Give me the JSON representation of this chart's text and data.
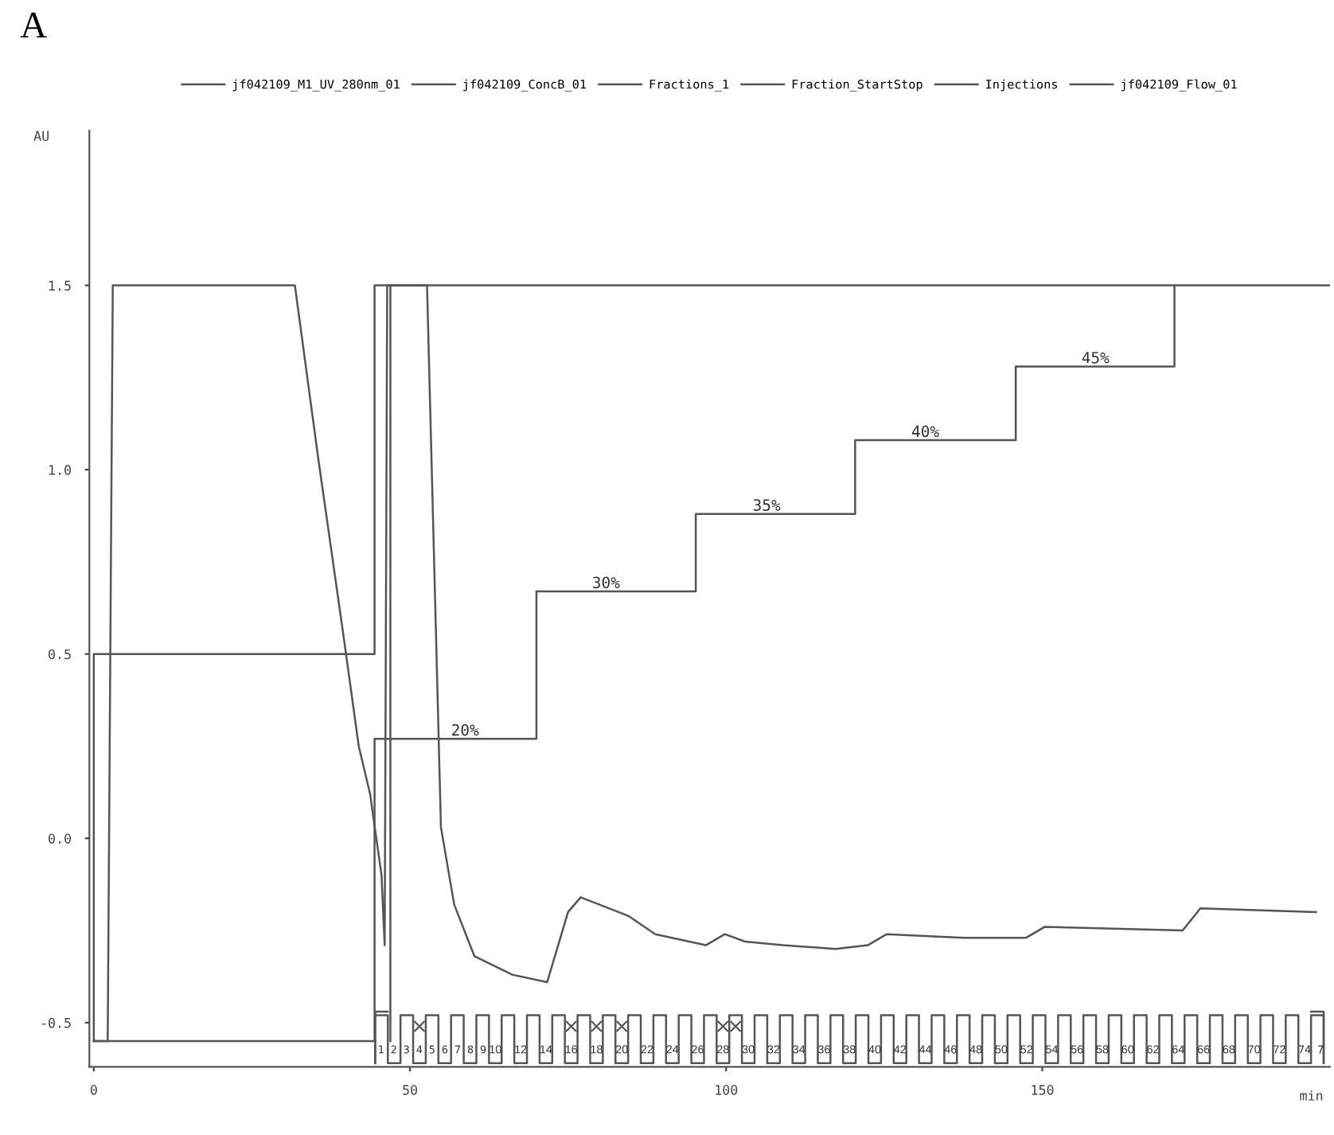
{
  "chart_data": {
    "type": "line",
    "title": "A",
    "ylabel": "AU",
    "xlabel": "min",
    "xlim": [
      -0.7,
      195.5
    ],
    "ylim": [
      -0.62,
      1.92
    ],
    "xticks": [
      0,
      50,
      100,
      150
    ],
    "yticks": [
      {
        "value": -0.5,
        "label": "-0.5"
      },
      {
        "value": 0,
        "label": "0.0"
      },
      {
        "value": 0.5,
        "label": "0.5"
      },
      {
        "value": 1,
        "label": "1.0"
      },
      {
        "value": 1.5,
        "label": "1.5"
      }
    ],
    "legend": "top",
    "grid": false,
    "series": [
      {
        "name": "jf042109_M1_UV_280nm_01",
        "color": "#555555",
        "x": [
          0,
          2.2,
          3,
          31.8,
          35.5,
          39.4,
          41.9,
          43.7,
          45.5,
          46,
          46.4,
          52.7,
          54.9,
          57,
          60.2,
          66.2,
          71.7,
          75,
          77,
          84.5,
          88.8,
          96.8,
          99.8,
          103,
          109,
          117.3,
          122.4,
          125.4,
          137.6,
          147.4,
          150.4,
          172.2,
          175,
          193.3
        ],
        "values": [
          -0.55,
          -0.55,
          1.5,
          1.5,
          1.03,
          0.56,
          0.25,
          0.12,
          -0.1,
          -0.29,
          1.5,
          1.5,
          0.03,
          -0.18,
          -0.32,
          -0.37,
          -0.39,
          -0.2,
          -0.16,
          -0.21,
          -0.26,
          -0.29,
          -0.26,
          -0.28,
          -0.29,
          -0.3,
          -0.29,
          -0.26,
          -0.27,
          -0.27,
          -0.24,
          -0.25,
          -0.19,
          -0.2
        ]
      },
      {
        "name": "jf042109_ConcB_01",
        "color": "#555555",
        "x": [
          0,
          44.4,
          44.4,
          70,
          70,
          95.2,
          95.2,
          120.4,
          120.4,
          145.8,
          145.8,
          170.9,
          170.9
        ],
        "values": [
          -0.55,
          -0.55,
          0.27,
          0.27,
          0.67,
          0.67,
          0.88,
          0.88,
          1.08,
          1.08,
          1.28,
          1.28,
          1.5
        ]
      },
      {
        "name": "Fractions_1",
        "color": "#555555",
        "x": [
          44.5,
          44.5,
          46.5,
          46.5,
          48.5,
          48.5,
          50.5,
          50.5,
          52.5,
          52.5,
          54.5,
          54.5,
          56.5,
          56.5,
          58.5,
          58.5,
          60.5,
          60.5,
          62.5,
          62.5,
          64.5,
          64.5,
          66.5,
          66.5,
          68.5,
          68.5,
          70.5,
          70.5,
          72.5,
          72.5,
          74.5,
          74.5,
          76.5,
          76.5,
          78.5,
          78.5,
          80.5,
          80.5,
          82.5,
          82.5,
          84.5,
          84.5,
          86.5,
          86.5,
          88.5,
          88.5,
          90.5,
          90.5,
          92.5,
          92.5,
          94.5,
          94.5,
          96.5,
          96.5,
          98.5,
          98.5,
          100.5,
          100.5,
          102.5,
          102.5,
          104.5,
          104.5,
          106.5,
          106.5,
          108.5,
          108.5,
          110.5,
          110.5,
          112.5,
          112.5,
          114.5,
          114.5,
          116.5,
          116.5,
          118.5,
          118.5,
          120.5,
          120.5,
          122.5,
          122.5,
          124.5,
          124.5,
          126.5,
          126.5,
          128.5,
          128.5,
          130.5,
          130.5,
          132.5,
          132.5,
          134.5,
          134.5,
          136.5,
          136.5,
          138.5,
          138.5,
          140.5,
          140.5,
          142.5,
          142.5,
          144.5,
          144.5,
          146.5,
          146.5,
          148.5,
          148.5,
          150.5,
          150.5,
          152.5,
          152.5,
          154.5,
          154.5,
          156.5,
          156.5,
          158.5,
          158.5,
          160.5,
          160.5,
          162.5,
          162.5,
          164.5,
          164.5,
          166.5,
          166.5,
          168.5,
          168.5,
          170.5,
          170.5,
          172.5,
          172.5,
          174.5,
          174.5,
          176.5,
          176.5,
          178.5,
          178.5,
          180.5,
          180.5,
          182.5,
          182.5,
          184.5,
          184.5,
          186.5,
          186.5,
          188.5,
          188.5,
          190.5,
          190.5,
          192.5,
          192.5,
          194.5,
          194.5
        ],
        "values": [
          -0.61,
          -0.48,
          -0.48,
          -0.61,
          -0.61,
          -0.48,
          -0.48,
          -0.61,
          -0.61,
          -0.48,
          -0.48,
          -0.61,
          -0.61,
          -0.48,
          -0.48,
          -0.61,
          -0.61,
          -0.48,
          -0.48,
          -0.61,
          -0.61,
          -0.48,
          -0.48,
          -0.61,
          -0.61,
          -0.48,
          -0.48,
          -0.61,
          -0.61,
          -0.48,
          -0.48,
          -0.61,
          -0.61,
          -0.48,
          -0.48,
          -0.61,
          -0.61,
          -0.48,
          -0.48,
          -0.61,
          -0.61,
          -0.48,
          -0.48,
          -0.61,
          -0.61,
          -0.48,
          -0.48,
          -0.61,
          -0.61,
          -0.48,
          -0.48,
          -0.61,
          -0.61,
          -0.48,
          -0.48,
          -0.61,
          -0.61,
          -0.48,
          -0.48,
          -0.61,
          -0.61,
          -0.48,
          -0.48,
          -0.61,
          -0.61,
          -0.48,
          -0.48,
          -0.61,
          -0.61,
          -0.48,
          -0.48,
          -0.61,
          -0.61,
          -0.48,
          -0.48,
          -0.61,
          -0.61,
          -0.48,
          -0.48,
          -0.61,
          -0.61,
          -0.48,
          -0.48,
          -0.61,
          -0.61,
          -0.48,
          -0.48,
          -0.61,
          -0.61,
          -0.48,
          -0.48,
          -0.61,
          -0.61,
          -0.48,
          -0.48,
          -0.61,
          -0.61,
          -0.48,
          -0.48,
          -0.61,
          -0.61,
          -0.48,
          -0.48,
          -0.61,
          -0.61,
          -0.48,
          -0.48,
          -0.61,
          -0.61,
          -0.48,
          -0.48,
          -0.61,
          -0.61,
          -0.48,
          -0.48,
          -0.61,
          -0.61,
          -0.48,
          -0.48,
          -0.61,
          -0.61,
          -0.48,
          -0.48,
          -0.61,
          -0.61,
          -0.48,
          -0.48,
          -0.61,
          -0.61,
          -0.48,
          -0.48,
          -0.61,
          -0.61,
          -0.48,
          -0.48,
          -0.61,
          -0.61,
          -0.48,
          -0.48,
          -0.61,
          -0.61,
          -0.48,
          -0.48,
          -0.61,
          -0.61,
          -0.48,
          -0.48,
          -0.61,
          -0.61,
          -0.48,
          -0.48,
          -0.61
        ]
      },
      {
        "name": "Fraction_StartStop",
        "color": "#555555",
        "x": [
          44.5,
          44.5,
          46.5,
          null,
          192.5,
          194.5,
          194.5
        ],
        "values": [
          -0.61,
          -0.47,
          -0.47,
          null,
          -0.47,
          -0.47,
          -0.61
        ]
      },
      {
        "name": "Injections",
        "color": "#555555",
        "x": [
          46.9,
          46.9
        ],
        "values": [
          -0.55,
          1.5
        ]
      },
      {
        "name": "jf042109_Flow_01",
        "color": "#555555",
        "x": [
          0,
          0,
          44.4,
          44.4,
          195.5
        ],
        "values": [
          -0.55,
          0.5,
          0.5,
          1.5,
          1.5
        ]
      },
      {
        "type": "scatter",
        "marker": "cross",
        "color": "#555555",
        "x": [
          51.5,
          75.5,
          79.5,
          83.5,
          99.5,
          101.5
        ],
        "values": [
          -0.51,
          -0.51,
          -0.51,
          -0.51,
          -0.51,
          -0.51
        ]
      }
    ],
    "annotations": [
      {
        "text": "20%",
        "x": 58.7,
        "y": 0.27
      },
      {
        "text": "30%",
        "x": 81,
        "y": 0.67
      },
      {
        "text": "35%",
        "x": 106.4,
        "y": 0.88
      },
      {
        "text": "40%",
        "x": 131.5,
        "y": 1.08
      },
      {
        "text": "45%",
        "x": 158.4,
        "y": 1.28
      },
      {
        "text": "1 2 3 4 5 6 7 8 9",
        "x": 53.5,
        "y": -0.575
      },
      {
        "text": "10",
        "x": 63.5,
        "y": -0.575
      },
      {
        "text": "12",
        "x": 67.5,
        "y": -0.575
      },
      {
        "text": "14",
        "x": 71.5,
        "y": -0.575
      },
      {
        "text": "16",
        "x": 75.5,
        "y": -0.575
      },
      {
        "text": "18",
        "x": 79.5,
        "y": -0.575
      },
      {
        "text": "20",
        "x": 83.5,
        "y": -0.575
      },
      {
        "text": "22",
        "x": 87.5,
        "y": -0.575
      },
      {
        "text": "24",
        "x": 91.5,
        "y": -0.575
      },
      {
        "text": "26",
        "x": 95.5,
        "y": -0.575
      },
      {
        "text": "28",
        "x": 99.5,
        "y": -0.575
      },
      {
        "text": "30",
        "x": 103.5,
        "y": -0.575
      },
      {
        "text": "32",
        "x": 107.5,
        "y": -0.575
      },
      {
        "text": "34",
        "x": 111.5,
        "y": -0.575
      },
      {
        "text": "36",
        "x": 115.5,
        "y": -0.575
      },
      {
        "text": "38",
        "x": 119.5,
        "y": -0.575
      },
      {
        "text": "40",
        "x": 123.5,
        "y": -0.575
      },
      {
        "text": "42",
        "x": 127.5,
        "y": -0.575
      },
      {
        "text": "44",
        "x": 131.5,
        "y": -0.575
      },
      {
        "text": "46",
        "x": 135.5,
        "y": -0.575
      },
      {
        "text": "48",
        "x": 139.5,
        "y": -0.575
      },
      {
        "text": "50",
        "x": 143.5,
        "y": -0.575
      },
      {
        "text": "52",
        "x": 147.5,
        "y": -0.575
      },
      {
        "text": "54",
        "x": 151.5,
        "y": -0.575
      },
      {
        "text": "56",
        "x": 155.5,
        "y": -0.575
      },
      {
        "text": "58",
        "x": 159.5,
        "y": -0.575
      },
      {
        "text": "60",
        "x": 163.5,
        "y": -0.575
      },
      {
        "text": "62",
        "x": 167.5,
        "y": -0.575
      },
      {
        "text": "64",
        "x": 171.5,
        "y": -0.575
      },
      {
        "text": "66",
        "x": 175.5,
        "y": -0.575
      },
      {
        "text": "68",
        "x": 179.5,
        "y": -0.575
      },
      {
        "text": "70",
        "x": 183.5,
        "y": -0.575
      },
      {
        "text": "72",
        "x": 187.5,
        "y": -0.575
      },
      {
        "text": "74 7",
        "x": 192.5,
        "y": -0.575
      }
    ]
  }
}
